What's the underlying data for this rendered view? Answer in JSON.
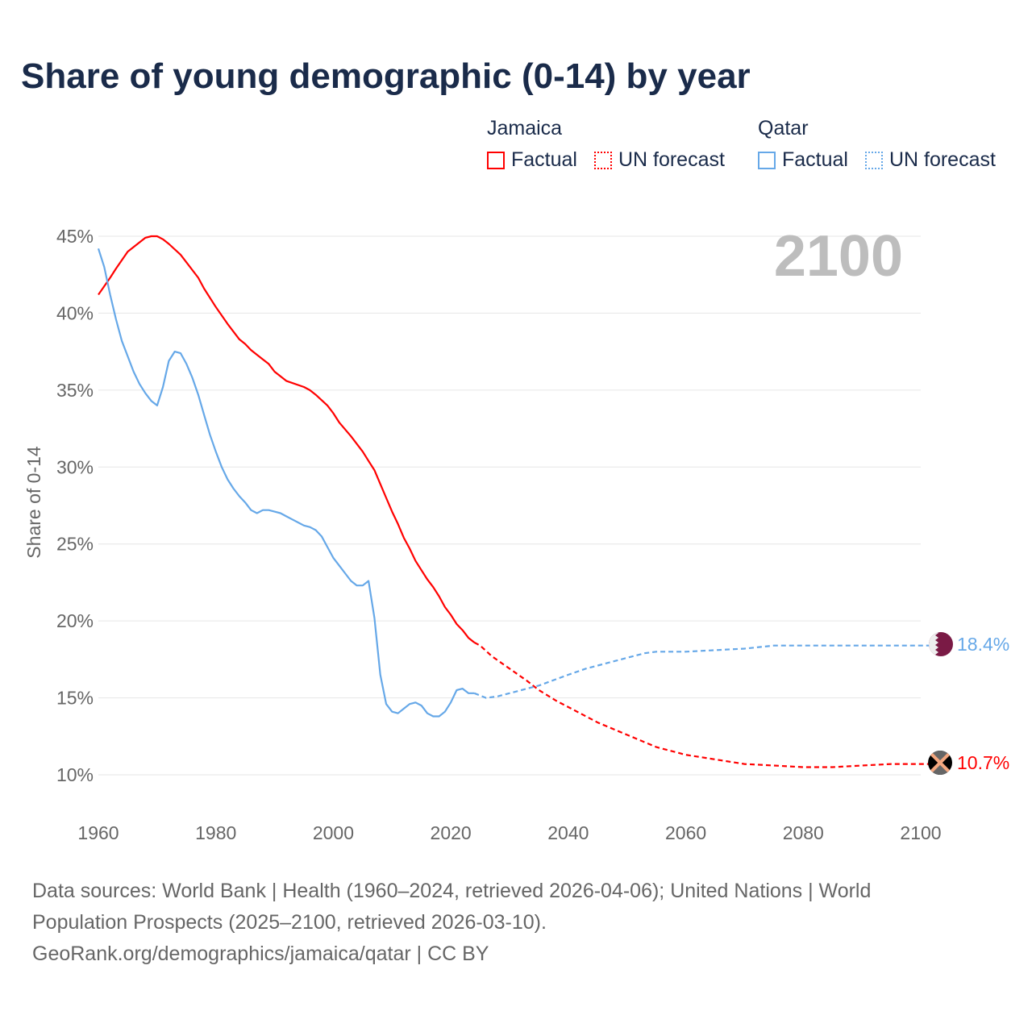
{
  "title": "Share of young demographic (0-14) by year",
  "legend": [
    {
      "group": "Jamaica",
      "color": "#ff0000",
      "factual_label": "Factual",
      "forecast_label": "UN forecast"
    },
    {
      "group": "Qatar",
      "color": "#66a8e8",
      "factual_label": "Factual",
      "forecast_label": "UN forecast"
    }
  ],
  "year_watermark": "2100",
  "footer": {
    "line1": "Data sources: World Bank | Health (1960–2024, retrieved 2026-04-06); United Nations | World",
    "line2": "Population Prospects (2025–2100, retrieved 2026-03-10).",
    "line3": "GeoRank.org/demographics/jamaica/qatar | CC BY"
  },
  "chart_data": {
    "type": "line",
    "title": "Share of young demographic (0-14) by year",
    "xlabel": "",
    "ylabel": "Share of 0-14",
    "xlim": [
      1960,
      2100
    ],
    "ylim": [
      10,
      45
    ],
    "x_ticks": [
      "1960",
      "1980",
      "2000",
      "2020",
      "2040",
      "2060",
      "2080",
      "2100"
    ],
    "y_ticks": [
      "10%",
      "15%",
      "20%",
      "25%",
      "30%",
      "35%",
      "40%",
      "45%"
    ],
    "grid": true,
    "legend_position": "top-right",
    "series": [
      {
        "name": "Jamaica",
        "color": "#ff0000",
        "end_label": "10.7%",
        "factual": [
          [
            1960,
            41.2
          ],
          [
            1962,
            42.3
          ],
          [
            1963,
            42.9
          ],
          [
            1965,
            44.0
          ],
          [
            1967,
            44.6
          ],
          [
            1968,
            44.9
          ],
          [
            1969,
            45.0
          ],
          [
            1970,
            45.0
          ],
          [
            1971,
            44.8
          ],
          [
            1972,
            44.5
          ],
          [
            1974,
            43.8
          ],
          [
            1975,
            43.3
          ],
          [
            1977,
            42.3
          ],
          [
            1978,
            41.6
          ],
          [
            1980,
            40.4
          ],
          [
            1982,
            39.3
          ],
          [
            1984,
            38.3
          ],
          [
            1985,
            38.0
          ],
          [
            1986,
            37.6
          ],
          [
            1988,
            37.0
          ],
          [
            1989,
            36.7
          ],
          [
            1990,
            36.2
          ],
          [
            1992,
            35.6
          ],
          [
            1995,
            35.2
          ],
          [
            1996,
            35.0
          ],
          [
            1997,
            34.7
          ],
          [
            1999,
            34.0
          ],
          [
            2000,
            33.5
          ],
          [
            2001,
            32.9
          ],
          [
            2003,
            32.0
          ],
          [
            2005,
            31.0
          ],
          [
            2006,
            30.4
          ],
          [
            2007,
            29.8
          ],
          [
            2008,
            28.9
          ],
          [
            2009,
            28.0
          ],
          [
            2010,
            27.1
          ],
          [
            2011,
            26.3
          ],
          [
            2012,
            25.4
          ],
          [
            2013,
            24.7
          ],
          [
            2014,
            23.9
          ],
          [
            2015,
            23.3
          ],
          [
            2016,
            22.7
          ],
          [
            2017,
            22.2
          ],
          [
            2018,
            21.6
          ],
          [
            2019,
            20.9
          ],
          [
            2020,
            20.4
          ],
          [
            2021,
            19.8
          ],
          [
            2022,
            19.4
          ],
          [
            2023,
            18.9
          ],
          [
            2024,
            18.6
          ]
        ],
        "forecast": [
          [
            2024,
            18.6
          ],
          [
            2025,
            18.4
          ],
          [
            2027,
            17.7
          ],
          [
            2030,
            16.9
          ],
          [
            2033,
            16.1
          ],
          [
            2035,
            15.5
          ],
          [
            2038,
            14.8
          ],
          [
            2040,
            14.4
          ],
          [
            2045,
            13.4
          ],
          [
            2050,
            12.6
          ],
          [
            2055,
            11.8
          ],
          [
            2060,
            11.3
          ],
          [
            2065,
            11.0
          ],
          [
            2070,
            10.7
          ],
          [
            2075,
            10.6
          ],
          [
            2080,
            10.5
          ],
          [
            2085,
            10.5
          ],
          [
            2090,
            10.6
          ],
          [
            2095,
            10.7
          ],
          [
            2100,
            10.7
          ]
        ]
      },
      {
        "name": "Qatar",
        "color": "#66a8e8",
        "end_label": "18.4%",
        "factual": [
          [
            1960,
            44.2
          ],
          [
            1961,
            43.0
          ],
          [
            1962,
            41.2
          ],
          [
            1963,
            39.6
          ],
          [
            1964,
            38.2
          ],
          [
            1965,
            37.2
          ],
          [
            1966,
            36.2
          ],
          [
            1967,
            35.4
          ],
          [
            1968,
            34.8
          ],
          [
            1969,
            34.3
          ],
          [
            1970,
            34.0
          ],
          [
            1971,
            35.2
          ],
          [
            1972,
            36.9
          ],
          [
            1973,
            37.5
          ],
          [
            1974,
            37.4
          ],
          [
            1975,
            36.7
          ],
          [
            1976,
            35.8
          ],
          [
            1977,
            34.7
          ],
          [
            1978,
            33.4
          ],
          [
            1979,
            32.1
          ],
          [
            1980,
            31.0
          ],
          [
            1981,
            30.0
          ],
          [
            1982,
            29.2
          ],
          [
            1983,
            28.6
          ],
          [
            1984,
            28.1
          ],
          [
            1985,
            27.7
          ],
          [
            1986,
            27.2
          ],
          [
            1987,
            27.0
          ],
          [
            1988,
            27.2
          ],
          [
            1989,
            27.2
          ],
          [
            1990,
            27.1
          ],
          [
            1991,
            27.0
          ],
          [
            1992,
            26.8
          ],
          [
            1993,
            26.6
          ],
          [
            1994,
            26.4
          ],
          [
            1995,
            26.2
          ],
          [
            1996,
            26.1
          ],
          [
            1997,
            25.9
          ],
          [
            1998,
            25.5
          ],
          [
            1999,
            24.8
          ],
          [
            2000,
            24.1
          ],
          [
            2001,
            23.6
          ],
          [
            2002,
            23.1
          ],
          [
            2003,
            22.6
          ],
          [
            2004,
            22.3
          ],
          [
            2005,
            22.3
          ],
          [
            2006,
            22.6
          ],
          [
            2007,
            20.2
          ],
          [
            2008,
            16.5
          ],
          [
            2009,
            14.6
          ],
          [
            2010,
            14.1
          ],
          [
            2011,
            14.0
          ],
          [
            2012,
            14.3
          ],
          [
            2013,
            14.6
          ],
          [
            2014,
            14.7
          ],
          [
            2015,
            14.5
          ],
          [
            2016,
            14.0
          ],
          [
            2017,
            13.8
          ],
          [
            2018,
            13.8
          ],
          [
            2019,
            14.1
          ],
          [
            2020,
            14.7
          ],
          [
            2021,
            15.5
          ],
          [
            2022,
            15.6
          ],
          [
            2023,
            15.3
          ],
          [
            2024,
            15.3
          ]
        ],
        "forecast": [
          [
            2024,
            15.3
          ],
          [
            2026,
            15.0
          ],
          [
            2028,
            15.1
          ],
          [
            2030,
            15.3
          ],
          [
            2035,
            15.8
          ],
          [
            2040,
            16.5
          ],
          [
            2043,
            16.9
          ],
          [
            2045,
            17.1
          ],
          [
            2050,
            17.6
          ],
          [
            2053,
            17.9
          ],
          [
            2055,
            18.0
          ],
          [
            2060,
            18.0
          ],
          [
            2065,
            18.1
          ],
          [
            2070,
            18.2
          ],
          [
            2075,
            18.4
          ],
          [
            2080,
            18.4
          ],
          [
            2090,
            18.4
          ],
          [
            2100,
            18.4
          ]
        ]
      }
    ]
  }
}
